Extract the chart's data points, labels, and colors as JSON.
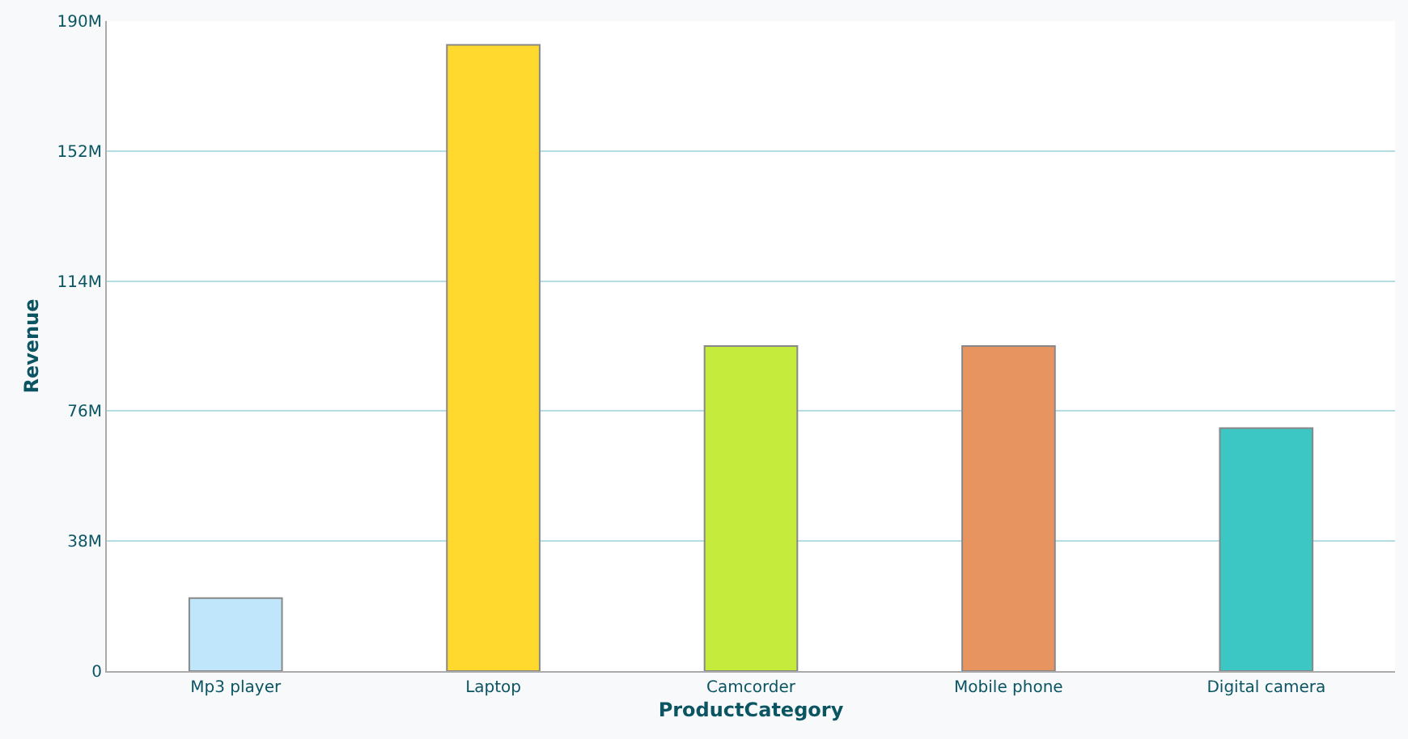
{
  "chart_data": {
    "type": "bar",
    "xlabel": "ProductCategory",
    "ylabel": "Revenue",
    "categories": [
      "Mp3 player",
      "Laptop",
      "Camcorder",
      "Mobile phone",
      "Digital camera"
    ],
    "values": [
      21.3,
      183,
      95,
      95,
      71
    ],
    "colors": [
      "#bfe6fb",
      "#ffd92e",
      "#c5ec3c",
      "#e89460",
      "#3cc6c4"
    ],
    "ylim": [
      0,
      190
    ],
    "yticks": [
      {
        "value": 0,
        "label": "0"
      },
      {
        "value": 38,
        "label": "38M"
      },
      {
        "value": 76,
        "label": "76M"
      },
      {
        "value": 114,
        "label": "114M"
      },
      {
        "value": 152,
        "label": "152M"
      },
      {
        "value": 190,
        "label": "190M"
      }
    ],
    "grid": "y"
  }
}
